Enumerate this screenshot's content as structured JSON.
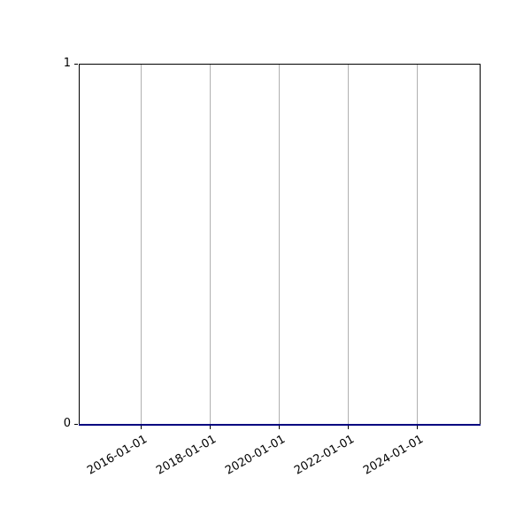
{
  "figure": {
    "background": "#ffffff",
    "spine_color": "#000000",
    "tick_color": "#000000"
  },
  "chart_data": {
    "type": "line",
    "title": "",
    "xlabel": "",
    "ylabel": "",
    "x_tick_labels": [
      "2016-01-01",
      "2018-01-01",
      "2020-01-01",
      "2022-01-01",
      "2024-01-01"
    ],
    "y_tick_labels": [
      "0",
      "1"
    ],
    "ylim": [
      0,
      1
    ],
    "grid": {
      "axis": "x",
      "color": "#b0b0b0",
      "horizontal": false,
      "vertical": true
    },
    "legend": null,
    "series": [
      {
        "name": "series-0",
        "color": "#000080",
        "x": [
          "2016-01-01",
          "2018-01-01",
          "2020-01-01",
          "2022-01-01",
          "2024-01-01"
        ],
        "y": [
          0,
          0,
          0,
          0,
          0
        ],
        "note": "flat line at y=0 spanning the entire x-axis width"
      }
    ]
  }
}
